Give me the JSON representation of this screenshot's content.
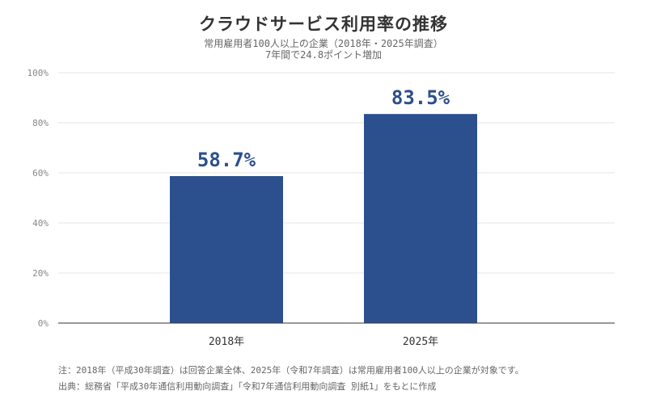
{
  "chart_data": {
    "type": "bar",
    "title": "クラウドサービス利用率の推移",
    "subtitle": "常用雇用者100人以上の企業（2018年・2025年調査）",
    "subtitle2": "7年間で24.8ポイント増加",
    "categories": [
      "2018年",
      "2025年"
    ],
    "values": [
      58.7,
      83.5
    ],
    "data_labels": [
      "58.7%",
      "83.5%"
    ],
    "ylim": [
      0,
      100
    ],
    "yticks": [
      0,
      20,
      40,
      60,
      80,
      100
    ],
    "ytick_labels": [
      "0%",
      "20%",
      "40%",
      "60%",
      "80%",
      "100%"
    ],
    "grid": true,
    "bar_color": "#2c4f8e"
  },
  "footer": {
    "note": "注：2018年（平成30年調査）は回答企業全体、2025年（令和7年調査）は常用雇用者100人以上の企業が対象です。",
    "source": "出典：総務省「平成30年通信利用動向調査」「令和7年通信利用動向調査 別紙1」をもとに作成"
  }
}
